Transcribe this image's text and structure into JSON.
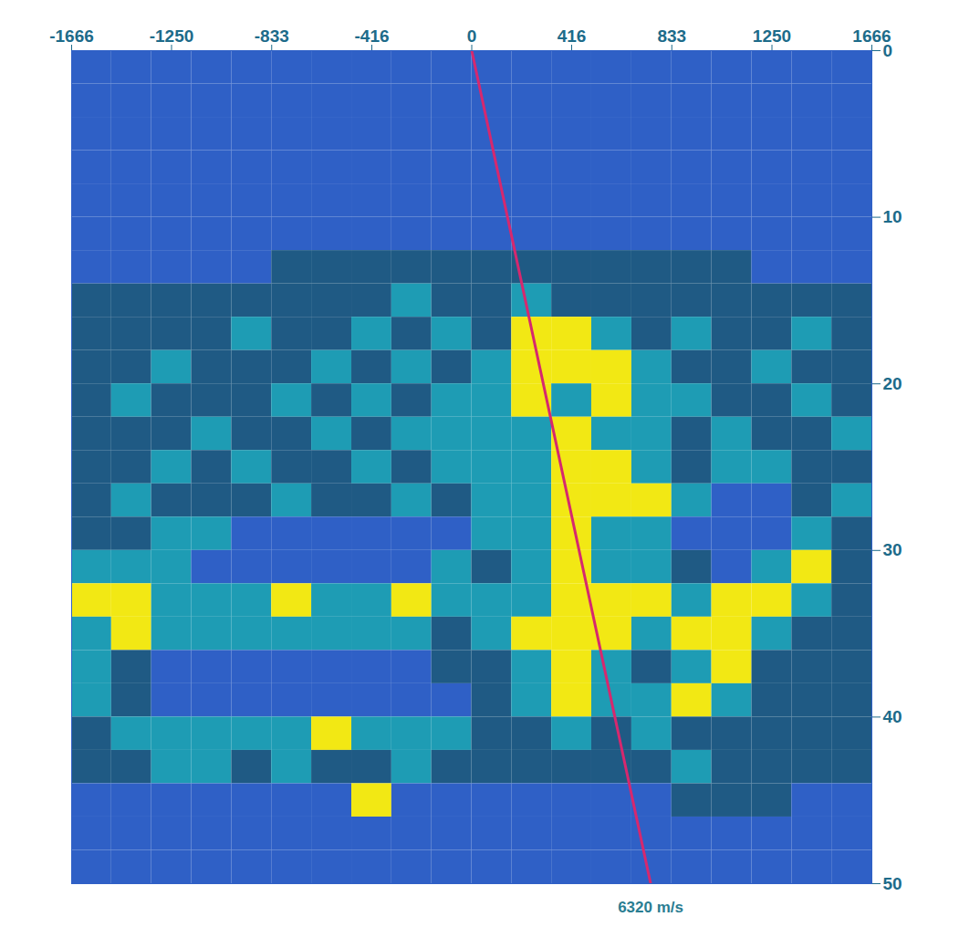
{
  "chart_data": {
    "type": "heatmap",
    "x": [
      -1583,
      -1416,
      -1250,
      -1083,
      -916,
      -750,
      -583,
      -416,
      -250,
      -83,
      83,
      250,
      416,
      583,
      750,
      916,
      1083,
      1250,
      1416,
      1583
    ],
    "y": [
      1,
      3,
      5,
      7,
      9,
      11,
      13,
      15,
      17,
      19,
      21,
      23,
      25,
      27,
      29,
      31,
      33,
      35,
      37,
      39,
      41,
      43,
      45,
      47,
      49
    ],
    "values": [
      [
        0,
        0,
        0,
        0,
        0,
        0,
        0,
        0,
        0,
        0,
        0,
        0,
        0,
        0,
        0,
        0,
        0,
        0,
        0,
        0
      ],
      [
        0,
        0,
        0,
        0,
        0,
        0,
        0,
        0,
        0,
        0,
        0,
        0,
        0,
        0,
        0,
        0,
        0,
        0,
        0,
        0
      ],
      [
        0,
        0,
        0,
        0,
        0,
        0,
        0,
        0,
        0,
        0,
        0,
        0,
        0,
        0,
        0,
        0,
        0,
        0,
        0,
        0
      ],
      [
        0,
        0,
        0,
        0,
        0,
        0,
        0,
        0,
        0,
        0,
        0,
        0,
        0,
        0,
        0,
        0,
        0,
        0,
        0,
        0
      ],
      [
        0,
        0,
        0,
        0,
        0,
        0,
        0,
        0,
        0,
        0,
        0,
        0,
        0,
        0,
        0,
        0,
        0,
        0,
        0,
        0
      ],
      [
        0,
        0,
        0,
        0,
        0,
        0,
        0,
        0,
        0,
        0,
        0,
        0,
        0,
        0,
        0,
        0,
        0,
        0,
        0,
        0
      ],
      [
        0,
        0,
        0,
        0,
        0,
        1,
        1,
        1,
        1,
        1,
        1,
        1,
        1,
        1,
        1,
        1,
        1,
        0,
        0,
        0
      ],
      [
        1,
        1,
        1,
        1,
        1,
        1,
        1,
        1,
        2,
        1,
        1,
        2,
        1,
        1,
        1,
        1,
        1,
        1,
        1,
        1
      ],
      [
        1,
        1,
        1,
        1,
        2,
        1,
        1,
        2,
        1,
        2,
        1,
        3,
        3,
        2,
        1,
        2,
        1,
        1,
        2,
        1
      ],
      [
        1,
        1,
        2,
        1,
        1,
        1,
        2,
        1,
        2,
        1,
        2,
        3,
        3,
        3,
        2,
        1,
        1,
        2,
        1,
        1
      ],
      [
        1,
        2,
        1,
        1,
        1,
        2,
        1,
        2,
        1,
        2,
        2,
        3,
        2,
        3,
        2,
        2,
        1,
        1,
        2,
        1
      ],
      [
        1,
        1,
        1,
        2,
        1,
        1,
        2,
        1,
        2,
        2,
        2,
        2,
        3,
        2,
        2,
        1,
        2,
        1,
        1,
        2
      ],
      [
        1,
        1,
        2,
        1,
        2,
        1,
        1,
        2,
        1,
        2,
        2,
        2,
        3,
        3,
        2,
        1,
        2,
        2,
        1,
        1
      ],
      [
        1,
        2,
        1,
        1,
        1,
        2,
        1,
        1,
        2,
        1,
        2,
        2,
        3,
        3,
        3,
        2,
        0,
        0,
        1,
        2
      ],
      [
        1,
        1,
        2,
        2,
        0,
        0,
        0,
        0,
        0,
        0,
        2,
        2,
        3,
        2,
        2,
        0,
        0,
        0,
        2,
        1
      ],
      [
        2,
        2,
        2,
        0,
        0,
        0,
        0,
        0,
        0,
        2,
        1,
        2,
        3,
        2,
        2,
        1,
        0,
        2,
        3,
        1
      ],
      [
        3,
        3,
        2,
        2,
        2,
        3,
        2,
        2,
        3,
        2,
        2,
        2,
        3,
        3,
        3,
        2,
        3,
        3,
        2,
        1
      ],
      [
        2,
        3,
        2,
        2,
        2,
        2,
        2,
        2,
        2,
        1,
        2,
        3,
        3,
        3,
        2,
        3,
        3,
        2,
        1,
        1
      ],
      [
        2,
        1,
        0,
        0,
        0,
        0,
        0,
        0,
        0,
        1,
        1,
        2,
        3,
        2,
        1,
        2,
        3,
        1,
        1,
        1
      ],
      [
        2,
        1,
        0,
        0,
        0,
        0,
        0,
        0,
        0,
        0,
        1,
        2,
        3,
        2,
        2,
        3,
        2,
        1,
        1,
        1
      ],
      [
        1,
        2,
        2,
        2,
        2,
        2,
        3,
        2,
        2,
        2,
        1,
        1,
        2,
        1,
        2,
        1,
        1,
        1,
        1,
        1
      ],
      [
        1,
        1,
        2,
        2,
        1,
        2,
        1,
        1,
        2,
        1,
        1,
        1,
        1,
        1,
        1,
        2,
        1,
        1,
        1,
        1
      ],
      [
        0,
        0,
        0,
        0,
        0,
        0,
        0,
        3,
        0,
        0,
        0,
        0,
        0,
        0,
        0,
        1,
        1,
        1,
        0,
        0
      ],
      [
        0,
        0,
        0,
        0,
        0,
        0,
        0,
        0,
        0,
        0,
        0,
        0,
        0,
        0,
        0,
        0,
        0,
        0,
        0,
        0
      ],
      [
        0,
        0,
        0,
        0,
        0,
        0,
        0,
        0,
        0,
        0,
        0,
        0,
        0,
        0,
        0,
        0,
        0,
        0,
        0,
        0
      ]
    ],
    "levels": [
      0,
      1,
      2,
      3
    ],
    "colors": [
      "#2f60c6",
      "#1f5a84",
      "#1e9cb4",
      "#f2e814"
    ],
    "xlim": [
      -1666,
      1666
    ],
    "ylim": [
      0,
      50
    ],
    "xticks": [
      -1666,
      -1250,
      -833,
      -416,
      0,
      416,
      833,
      1250,
      1666
    ],
    "yticks": [
      0,
      10,
      20,
      30,
      40,
      50
    ],
    "annotations": [
      {
        "type": "line",
        "x": [
          0,
          745
        ],
        "y": [
          0,
          50
        ],
        "color": "#d6286e",
        "label": "6320 m/s"
      }
    ]
  }
}
